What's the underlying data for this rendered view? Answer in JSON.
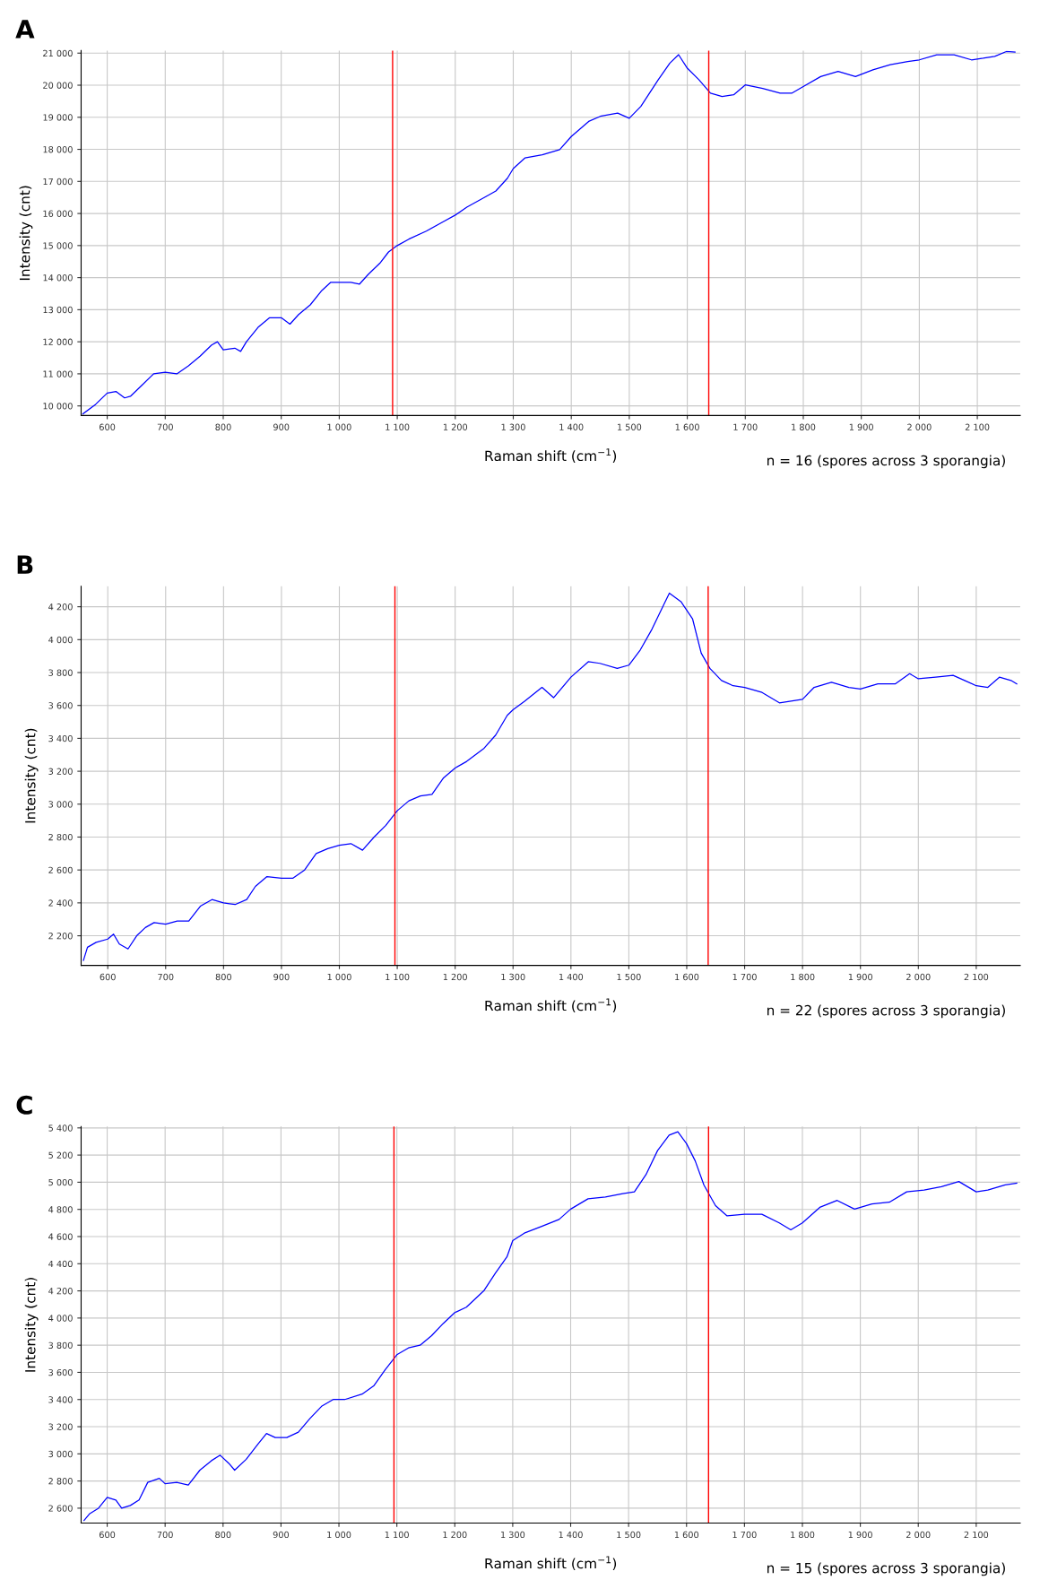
{
  "chart_data": [
    {
      "type": "line",
      "title": "A",
      "xlabel": "Raman shift (cm$^{−1}$)",
      "ylabel": "Intensity (cnt)",
      "annotations": [
        "n = 16 (spores across 3 sporangia)"
      ],
      "xlim": [
        555,
        2174
      ],
      "ylim": [
        9700,
        21080
      ],
      "xticks": [
        600,
        700,
        800,
        900,
        {
          "value": 1000,
          "label": "1 000"
        },
        {
          "value": 1100,
          "label": "1 100"
        },
        {
          "value": 1200,
          "label": "1 200"
        },
        {
          "value": 1300,
          "label": "1 300"
        },
        {
          "value": 1400,
          "label": "1 400"
        },
        {
          "value": 1500,
          "label": "1 500"
        },
        {
          "value": 1600,
          "label": "1 600"
        },
        {
          "value": 1700,
          "label": "1 700"
        },
        {
          "value": 1800,
          "label": "1 800"
        },
        {
          "value": 1900,
          "label": "1 900"
        },
        {
          "value": 2000,
          "label": "2 000"
        },
        {
          "value": 2100,
          "label": "2 100"
        }
      ],
      "yticks": [
        {
          "value": 10000,
          "label": "10 000"
        },
        {
          "value": 11000,
          "label": "11 000"
        },
        {
          "value": 12000,
          "label": "12 000"
        },
        {
          "value": 13000,
          "label": "13 000"
        },
        {
          "value": 14000,
          "label": "14 000"
        },
        {
          "value": 15000,
          "label": "15 000"
        },
        {
          "value": 16000,
          "label": "16 000"
        },
        {
          "value": 17000,
          "label": "17 000"
        },
        {
          "value": 18000,
          "label": "18 000"
        },
        {
          "value": 19000,
          "label": "19 000"
        },
        {
          "value": 20000,
          "label": "20 000"
        },
        {
          "value": 21000,
          "label": "21 000"
        }
      ],
      "grid": true,
      "ref_lines": [
        {
          "axis": "x",
          "value": 1092,
          "color": "#ff0000"
        },
        {
          "axis": "x",
          "value": 1637,
          "color": "#ff0000"
        }
      ],
      "series": [
        {
          "color": "#0000ff",
          "x": [
            558,
            580,
            600,
            615,
            630,
            640,
            660,
            680,
            700,
            720,
            740,
            760,
            780,
            790,
            800,
            820,
            830,
            840,
            860,
            880,
            900,
            915,
            930,
            950,
            970,
            985,
            1000,
            1020,
            1035,
            1050,
            1070,
            1085,
            1100,
            1120,
            1150,
            1180,
            1200,
            1220,
            1250,
            1270,
            1290,
            1300,
            1320,
            1350,
            1380,
            1400,
            1430,
            1450,
            1480,
            1500,
            1520,
            1550,
            1570,
            1585,
            1600,
            1620,
            1640,
            1660,
            1680,
            1700,
            1730,
            1760,
            1780,
            1800,
            1830,
            1860,
            1890,
            1920,
            1950,
            1980,
            2000,
            2030,
            2060,
            2090,
            2110,
            2130,
            2150,
            2165
          ],
          "values": [
            9750,
            10050,
            10400,
            10450,
            10250,
            10300,
            10650,
            11000,
            11050,
            11000,
            11250,
            11550,
            11900,
            12000,
            11750,
            11800,
            11700,
            12000,
            12450,
            12750,
            12750,
            12550,
            12850,
            13150,
            13600,
            13850,
            13850,
            13850,
            13800,
            14100,
            14450,
            14800,
            15000,
            15200,
            15450,
            15750,
            15950,
            16200,
            16500,
            16700,
            17100,
            17400,
            17730,
            17830,
            17990,
            18400,
            18870,
            19030,
            19130,
            18970,
            19340,
            20170,
            20690,
            20950,
            20530,
            20170,
            19750,
            19650,
            19700,
            20010,
            19900,
            19750,
            19750,
            19960,
            20270,
            20430,
            20270,
            20480,
            20640,
            20740,
            20790,
            20950,
            20950,
            20790,
            20840,
            20900,
            21050,
            21030
          ]
        }
      ]
    },
    {
      "type": "line",
      "title": "B",
      "xlabel": "Raman shift (cm$^{−1}$)",
      "ylabel": "Intensity (cnt)",
      "annotations": [
        "n = 22 (spores across 3 sporangia)"
      ],
      "xlim": [
        554,
        2176
      ],
      "ylim": [
        2020,
        4325
      ],
      "xticks": [
        600,
        700,
        800,
        900,
        {
          "value": 1000,
          "label": "1 000"
        },
        {
          "value": 1100,
          "label": "1 100"
        },
        {
          "value": 1200,
          "label": "1 200"
        },
        {
          "value": 1300,
          "label": "1 300"
        },
        {
          "value": 1400,
          "label": "1 400"
        },
        {
          "value": 1500,
          "label": "1 500"
        },
        {
          "value": 1600,
          "label": "1 600"
        },
        {
          "value": 1700,
          "label": "1 700"
        },
        {
          "value": 1800,
          "label": "1 800"
        },
        {
          "value": 1900,
          "label": "1 900"
        },
        {
          "value": 2000,
          "label": "2 000"
        },
        {
          "value": 2100,
          "label": "2 100"
        }
      ],
      "yticks": [
        {
          "value": 2200,
          "label": "2 200"
        },
        {
          "value": 2400,
          "label": "2 400"
        },
        {
          "value": 2600,
          "label": "2 600"
        },
        {
          "value": 2800,
          "label": "2 800"
        },
        {
          "value": 3000,
          "label": "3 000"
        },
        {
          "value": 3200,
          "label": "3 200"
        },
        {
          "value": 3400,
          "label": "3 400"
        },
        {
          "value": 3600,
          "label": "3 600"
        },
        {
          "value": 3800,
          "label": "3 800"
        },
        {
          "value": 4000,
          "label": "4 000"
        },
        {
          "value": 4200,
          "label": "4 200"
        }
      ],
      "grid": true,
      "ref_lines": [
        {
          "axis": "x",
          "value": 1096,
          "color": "#ff0000"
        },
        {
          "axis": "x",
          "value": 1637,
          "color": "#ff0000"
        }
      ],
      "series": [
        {
          "color": "#0000ff",
          "x": [
            558,
            565,
            580,
            600,
            610,
            620,
            635,
            650,
            665,
            680,
            700,
            720,
            740,
            760,
            780,
            800,
            820,
            840,
            855,
            875,
            900,
            920,
            940,
            960,
            980,
            1000,
            1020,
            1040,
            1060,
            1080,
            1100,
            1120,
            1140,
            1160,
            1180,
            1200,
            1220,
            1250,
            1270,
            1290,
            1300,
            1320,
            1350,
            1370,
            1400,
            1430,
            1450,
            1480,
            1500,
            1520,
            1540,
            1560,
            1570,
            1590,
            1610,
            1625,
            1640,
            1660,
            1680,
            1700,
            1730,
            1760,
            1780,
            1800,
            1820,
            1850,
            1880,
            1900,
            1930,
            1960,
            1985,
            2000,
            2030,
            2060,
            2080,
            2100,
            2120,
            2140,
            2160,
            2170
          ],
          "values": [
            2050,
            2130,
            2160,
            2180,
            2210,
            2150,
            2120,
            2200,
            2250,
            2280,
            2270,
            2290,
            2290,
            2380,
            2420,
            2400,
            2390,
            2420,
            2500,
            2560,
            2550,
            2550,
            2600,
            2700,
            2730,
            2750,
            2760,
            2720,
            2800,
            2870,
            2960,
            3020,
            3050,
            3060,
            3160,
            3220,
            3260,
            3340,
            3420,
            3540,
            3574,
            3626,
            3710,
            3647,
            3772,
            3866,
            3856,
            3825,
            3845,
            3939,
            4064,
            4210,
            4283,
            4231,
            4127,
            3918,
            3825,
            3752,
            3720,
            3710,
            3679,
            3616,
            3626,
            3637,
            3710,
            3741,
            3710,
            3700,
            3731,
            3731,
            3793,
            3762,
            3772,
            3783,
            3752,
            3720,
            3710,
            3772,
            3752,
            3731
          ]
        }
      ]
    },
    {
      "type": "line",
      "title": "C",
      "xlabel": "Raman shift (cm$^{−1}$)",
      "ylabel": "Intensity (cnt)",
      "annotations": [
        "n = 15 (spores across 3 sporangia)"
      ],
      "xlim": [
        555,
        2176
      ],
      "ylim": [
        2490,
        5410
      ],
      "xticks": [
        600,
        700,
        800,
        900,
        {
          "value": 1000,
          "label": "1 000"
        },
        {
          "value": 1100,
          "label": "1 100"
        },
        {
          "value": 1200,
          "label": "1 200"
        },
        {
          "value": 1300,
          "label": "1 300"
        },
        {
          "value": 1400,
          "label": "1 400"
        },
        {
          "value": 1500,
          "label": "1 500"
        },
        {
          "value": 1600,
          "label": "1 600"
        },
        {
          "value": 1700,
          "label": "1 700"
        },
        {
          "value": 1800,
          "label": "1 800"
        },
        {
          "value": 1900,
          "label": "1 900"
        },
        {
          "value": 2000,
          "label": "2 000"
        },
        {
          "value": 2100,
          "label": "2 100"
        }
      ],
      "yticks": [
        {
          "value": 2600,
          "label": "2 600"
        },
        {
          "value": 2800,
          "label": "2 800"
        },
        {
          "value": 3000,
          "label": "3 000"
        },
        {
          "value": 3200,
          "label": "3 200"
        },
        {
          "value": 3400,
          "label": "3 400"
        },
        {
          "value": 3600,
          "label": "3 600"
        },
        {
          "value": 3800,
          "label": "3 800"
        },
        {
          "value": 4000,
          "label": "4 000"
        },
        {
          "value": 4200,
          "label": "4 200"
        },
        {
          "value": 4400,
          "label": "4 400"
        },
        {
          "value": 4600,
          "label": "4 600"
        },
        {
          "value": 4800,
          "label": "4 800"
        },
        {
          "value": 5000,
          "label": "5 000"
        },
        {
          "value": 5200,
          "label": "5 200"
        },
        {
          "value": 5400,
          "label": "5 400"
        }
      ],
      "grid": true,
      "ref_lines": [
        {
          "axis": "x",
          "value": 1095,
          "color": "#ff0000"
        },
        {
          "axis": "x",
          "value": 1638,
          "color": "#ff0000"
        }
      ],
      "series": [
        {
          "color": "#0000ff",
          "x": [
            560,
            570,
            585,
            600,
            615,
            625,
            640,
            655,
            670,
            690,
            700,
            720,
            740,
            760,
            780,
            795,
            810,
            820,
            840,
            860,
            875,
            890,
            910,
            930,
            950,
            970,
            990,
            1010,
            1040,
            1060,
            1080,
            1100,
            1120,
            1140,
            1160,
            1180,
            1200,
            1220,
            1250,
            1270,
            1290,
            1300,
            1320,
            1350,
            1380,
            1400,
            1430,
            1460,
            1490,
            1510,
            1530,
            1550,
            1570,
            1585,
            1600,
            1615,
            1630,
            1650,
            1670,
            1700,
            1730,
            1760,
            1780,
            1800,
            1830,
            1860,
            1890,
            1920,
            1950,
            1980,
            2010,
            2040,
            2070,
            2100,
            2120,
            2150,
            2170
          ],
          "values": [
            2510,
            2560,
            2600,
            2680,
            2660,
            2600,
            2620,
            2660,
            2790,
            2820,
            2780,
            2790,
            2770,
            2880,
            2950,
            2990,
            2930,
            2880,
            2960,
            3070,
            3150,
            3120,
            3120,
            3160,
            3260,
            3350,
            3400,
            3400,
            3440,
            3500,
            3620,
            3730,
            3780,
            3800,
            3870,
            3960,
            4040,
            4080,
            4200,
            4330,
            4450,
            4570,
            4625,
            4675,
            4726,
            4802,
            4878,
            4891,
            4916,
            4929,
            5056,
            5233,
            5347,
            5372,
            5284,
            5157,
            4980,
            4828,
            4752,
            4764,
            4764,
            4701,
            4650,
            4701,
            4815,
            4866,
            4802,
            4840,
            4853,
            4929,
            4942,
            4967,
            5005,
            4929,
            4942,
            4980,
            4993
          ]
        }
      ]
    }
  ]
}
